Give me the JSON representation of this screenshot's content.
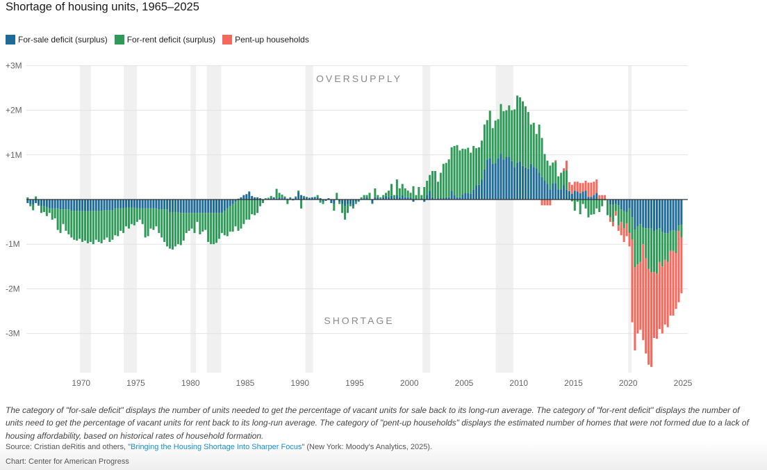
{
  "chart_data": {
    "type": "bar",
    "stacked": true,
    "title": "Shortage of housing units, 1965–2025",
    "xlabel": "",
    "ylabel": "",
    "start_year": 1965,
    "frequency": "quarterly",
    "ylim": [
      -3.9,
      3.0
    ],
    "yunit": "millions of units",
    "yticks": [
      3,
      2,
      1,
      0,
      -1,
      -2,
      -3
    ],
    "ytick_labels": [
      "+3M",
      "+2M",
      "+1M",
      "",
      "-1M",
      "-2M",
      "-3M"
    ],
    "xticks": [
      1970,
      1975,
      1980,
      1985,
      1990,
      1995,
      2000,
      2005,
      2010,
      2015,
      2020,
      2025
    ],
    "xtick_labels": [
      "1970",
      "1975",
      "1980",
      "1985",
      "1990",
      "1995",
      "2000",
      "2005",
      "2010",
      "2015",
      "2020",
      "2025"
    ],
    "legend_position": "top-left",
    "grid": true,
    "annotations": {
      "top": "OVERSUPPLY",
      "bottom": "SHORTAGE"
    },
    "shaded_periods": [
      [
        1969.9,
        1970.9
      ],
      [
        1973.9,
        1975.1
      ],
      [
        1980.0,
        1980.5
      ],
      [
        1981.5,
        1982.8
      ],
      [
        1990.5,
        1991.2
      ],
      [
        2001.2,
        2001.9
      ],
      [
        2007.9,
        2009.5
      ],
      [
        2020.0,
        2020.3
      ]
    ],
    "series": [
      {
        "name": "For-sale deficit (surplus)",
        "color": "#1f6b98",
        "values": [
          -0.08,
          -0.1,
          -0.12,
          -0.08,
          -0.12,
          -0.15,
          -0.15,
          -0.17,
          -0.2,
          -0.2,
          -0.2,
          -0.2,
          -0.22,
          -0.22,
          -0.22,
          -0.22,
          -0.25,
          -0.25,
          -0.25,
          -0.25,
          -0.26,
          -0.26,
          -0.26,
          -0.26,
          -0.25,
          -0.25,
          -0.25,
          -0.25,
          -0.24,
          -0.24,
          -0.24,
          -0.24,
          -0.2,
          -0.2,
          -0.2,
          -0.2,
          -0.18,
          -0.18,
          -0.18,
          -0.18,
          -0.2,
          -0.2,
          -0.2,
          -0.2,
          -0.2,
          -0.2,
          -0.2,
          -0.2,
          -0.22,
          -0.22,
          -0.22,
          -0.22,
          -0.28,
          -0.28,
          -0.28,
          -0.28,
          -0.3,
          -0.3,
          -0.3,
          -0.3,
          -0.3,
          -0.3,
          -0.3,
          -0.3,
          -0.3,
          -0.3,
          -0.3,
          -0.3,
          -0.3,
          -0.3,
          -0.3,
          -0.3,
          -0.25,
          -0.2,
          -0.15,
          -0.1,
          -0.05,
          0.02,
          0.05,
          0.1,
          0.12,
          0.18,
          0.08,
          0.05,
          0.05,
          0.03,
          -0.03,
          0.01,
          0.02,
          0.03,
          0.05,
          0.02,
          0.05,
          0.03,
          0.05,
          0.02,
          0.03,
          0.02,
          0.05,
          0.17,
          0.1,
          0.05,
          0.04,
          0.04,
          0.05,
          0.04,
          0.05,
          0.03,
          -0.05,
          -0.03,
          0.03,
          -0.08,
          -0.1,
          0,
          -0.05,
          -0.1,
          -0.15,
          -0.1,
          -0.1,
          -0.15,
          -0.05,
          -0.03,
          0.02,
          0.03,
          0.05,
          0,
          -0.08,
          0.05,
          0.05,
          0.02,
          0.05,
          0.08,
          0.05,
          0.08,
          0.03,
          0.1,
          0.05,
          0.1,
          0.05,
          0.05,
          0.05,
          -0.05,
          0.03,
          0,
          0.03,
          -0.05,
          0.1,
          0.2,
          0.05,
          0.02,
          0.03,
          0.03,
          0.04,
          0.05,
          0.05,
          0.2,
          0.1,
          0.05,
          0.05,
          0.12,
          0.15,
          0.14,
          0.13,
          0.23,
          0.32,
          0.33,
          0.45,
          0.67,
          0.9,
          0.93,
          0.8,
          0.82,
          0.92,
          1.02,
          0.9,
          0.95,
          0.96,
          0.86,
          0.73,
          0.83,
          0.85,
          0.75,
          0.72,
          0.69,
          0.8,
          0.73,
          0.7,
          0.6,
          0.5,
          0.42,
          0.35,
          0.23,
          0.37,
          0.37,
          0.23,
          0.23,
          0.32,
          0.22,
          0.19,
          0.13,
          0.2,
          0.18,
          0.14,
          0.18,
          0.2,
          0.06,
          0.06,
          0.1,
          0.15,
          0,
          0,
          0,
          0,
          -0.12,
          -0.12,
          -0.1,
          -0.13,
          -0.22,
          -0.26,
          -0.28,
          -0.2,
          -0.4,
          -0.67,
          -0.6,
          -0.55,
          -0.63,
          -0.64,
          -0.65,
          -0.65,
          -0.71,
          -0.68,
          -0.64,
          -0.73,
          -0.75,
          -0.76,
          -0.7,
          -0.69,
          -0.7,
          -0.58,
          -0.56
        ]
      },
      {
        "name": "For-rent deficit (surplus)",
        "color": "#2e9a57",
        "values": [
          0.05,
          -0.05,
          -0.12,
          0.07,
          -0.02,
          -0.15,
          -0.13,
          -0.2,
          -0.1,
          -0.25,
          -0.22,
          -0.48,
          -0.53,
          -0.33,
          -0.48,
          -0.56,
          -0.6,
          -0.65,
          -0.67,
          -0.63,
          -0.69,
          -0.66,
          -0.72,
          -0.69,
          -0.75,
          -0.65,
          -0.7,
          -0.73,
          -0.66,
          -0.61,
          -0.71,
          -0.66,
          -0.6,
          -0.62,
          -0.5,
          -0.55,
          -0.42,
          -0.47,
          -0.37,
          -0.4,
          -0.3,
          -0.25,
          -0.35,
          -0.65,
          -0.62,
          -0.45,
          -0.48,
          -0.4,
          -0.53,
          -0.63,
          -0.73,
          -0.83,
          -0.82,
          -0.84,
          -0.77,
          -0.72,
          -0.72,
          -0.62,
          -0.45,
          -0.4,
          -0.35,
          -0.45,
          -0.2,
          -0.48,
          -0.42,
          -0.38,
          -0.65,
          -0.7,
          -0.7,
          -0.67,
          -0.58,
          -0.45,
          -0.55,
          -0.62,
          -0.57,
          -0.62,
          -0.55,
          -0.7,
          -0.65,
          -0.55,
          -0.45,
          -0.45,
          -0.33,
          -0.35,
          -0.3,
          -0.15,
          -0.05,
          0.02,
          0.02,
          0.05,
          0,
          0.22,
          0.1,
          0.08,
          0.02,
          -0.1,
          0.02,
          -0.02,
          0.02,
          0.03,
          -0.2,
          0.03,
          0.02,
          0,
          0,
          0.02,
          0.05,
          -0.07,
          -0.05,
          0,
          0,
          0,
          -0.15,
          0.15,
          -0.05,
          -0.2,
          -0.3,
          -0.2,
          -0.05,
          -0.05,
          -0.05,
          -0.02,
          0.03,
          0.07,
          0.05,
          0.15,
          -0.02,
          0.2,
          0.05,
          0.03,
          0.05,
          0.07,
          0.15,
          0.27,
          0.07,
          0.35,
          0.2,
          0.25,
          0.2,
          0.15,
          0.1,
          0.3,
          0.07,
          0.28,
          0.07,
          0.28,
          0.32,
          0.35,
          0.59,
          0.62,
          0.37,
          0.57,
          0.76,
          0.77,
          0.85,
          0.97,
          1.1,
          1.17,
          1.05,
          1.02,
          0.98,
          1.02,
          0.92,
          0.97,
          0.83,
          0.84,
          0.87,
          1.01,
          0.88,
          1.06,
          0.8,
          0.95,
          0.88,
          1.12,
          1.08,
          1.05,
          1.15,
          1.14,
          1.29,
          1.5,
          1.44,
          1.45,
          1.37,
          1.27,
          0.88,
          0.99,
          0.77,
          1.08,
          0.88,
          0.6,
          0.52,
          0.53,
          0.46,
          0.48,
          0.29,
          0.37,
          0.33,
          0.44,
          0,
          -0.04,
          -0.25,
          -0.05,
          -0.33,
          -0.1,
          -0.2,
          -0.4,
          -0.34,
          -0.33,
          -0.2,
          -0.28,
          -0.15,
          -0.02,
          -0.35,
          -0.28,
          -0.38,
          -0.16,
          -0.45,
          -0.28,
          -0.39,
          -0.25,
          -0.55,
          -0.5,
          -0.85,
          -0.85,
          -0.85,
          -0.37,
          -0.68,
          -0.9,
          -0.98,
          -0.91,
          -0.98,
          -0.76,
          -0.77,
          -0.6,
          -0.64,
          -0.45,
          -0.46,
          -0.5,
          -0.12,
          -0.29
        ]
      },
      {
        "name": "Pent-up households",
        "color": "#f5695d",
        "values": [
          0,
          0,
          0,
          0,
          0,
          0,
          0,
          0,
          0,
          0,
          0,
          0,
          0,
          0,
          0,
          0,
          0,
          0,
          0,
          0,
          0,
          0,
          0,
          0,
          0,
          0,
          0,
          0,
          0,
          0,
          0,
          0,
          0,
          0,
          0,
          0,
          0,
          0,
          0,
          0,
          0,
          0,
          0,
          0,
          0,
          0,
          0,
          0,
          0,
          0,
          0,
          0,
          0,
          0,
          0,
          0,
          0,
          0,
          0,
          0,
          0,
          0,
          0,
          0,
          0,
          0,
          0,
          0,
          0,
          0,
          0,
          0,
          0,
          0,
          0,
          0,
          0,
          0,
          0,
          0,
          0,
          0,
          0,
          0,
          0,
          0,
          0,
          0,
          0,
          0,
          0,
          0,
          0,
          0,
          0,
          0,
          0,
          0,
          0,
          0,
          0,
          0,
          0,
          0,
          0,
          0,
          0,
          0,
          0,
          0,
          0,
          0,
          0,
          0,
          0,
          0,
          0,
          0,
          0,
          0,
          0,
          0,
          0,
          0,
          0,
          0,
          0,
          0,
          0,
          0,
          0,
          0,
          0,
          0,
          0,
          0,
          0,
          0,
          0,
          0,
          0,
          0,
          0,
          0,
          0,
          0,
          0,
          0,
          0,
          0,
          0,
          0,
          0,
          0,
          0,
          0,
          0,
          0,
          0,
          0,
          0,
          0,
          0,
          0,
          0,
          0,
          0,
          0,
          0,
          0,
          0,
          0,
          0,
          0,
          0,
          0,
          0,
          0,
          0,
          0,
          0,
          0,
          0,
          0,
          0,
          0,
          0,
          0,
          -0.13,
          -0.13,
          -0.13,
          -0.13,
          0,
          0.03,
          0,
          0,
          0.05,
          0.21,
          0.2,
          0.2,
          0.2,
          0.22,
          0.23,
          0.19,
          0.22,
          0.32,
          0.32,
          0.3,
          0.3,
          0.1,
          0.1,
          0.1,
          0,
          -0.1,
          -0.1,
          -0.1,
          -0.12,
          -0.3,
          -0.3,
          -0.29,
          -0.3,
          -1.85,
          -1.86,
          -1.55,
          -1.52,
          -2.15,
          -2.13,
          -2.15,
          -2.12,
          -1.48,
          -1.46,
          -1.5,
          -1.5,
          -1.45,
          -1.46,
          -1.45,
          -1.45,
          -1.25,
          -1.6,
          -1.25
        ]
      }
    ]
  },
  "legend": [
    {
      "label": "For-sale deficit (surplus)",
      "color": "#1f6b98"
    },
    {
      "label": "For-rent deficit (surplus)",
      "color": "#2e9a57"
    },
    {
      "label": "Pent-up households",
      "color": "#f5695d"
    }
  ],
  "footer": {
    "note": "The category of \"for-sale deficit\" displays the number of units needed to get the percentage of vacant units for sale back to its long-run average. The category of \"for-rent deficit\" displays the number of units need to get the percentage of vacant units for rent back to its long-run average. The category of \"pent-up households\" displays the estimated number of homes that were not formed due to a lack of housing affordability, based on historical rates of household formation.",
    "source_prefix": "Source: Cristian deRitis and others, \"",
    "source_link": "Bringing the Housing Shortage Into Sharper Focus",
    "source_suffix": "\" (New York: Moody's Analytics, 2025).",
    "credit": "Chart: Center for American Progress"
  }
}
